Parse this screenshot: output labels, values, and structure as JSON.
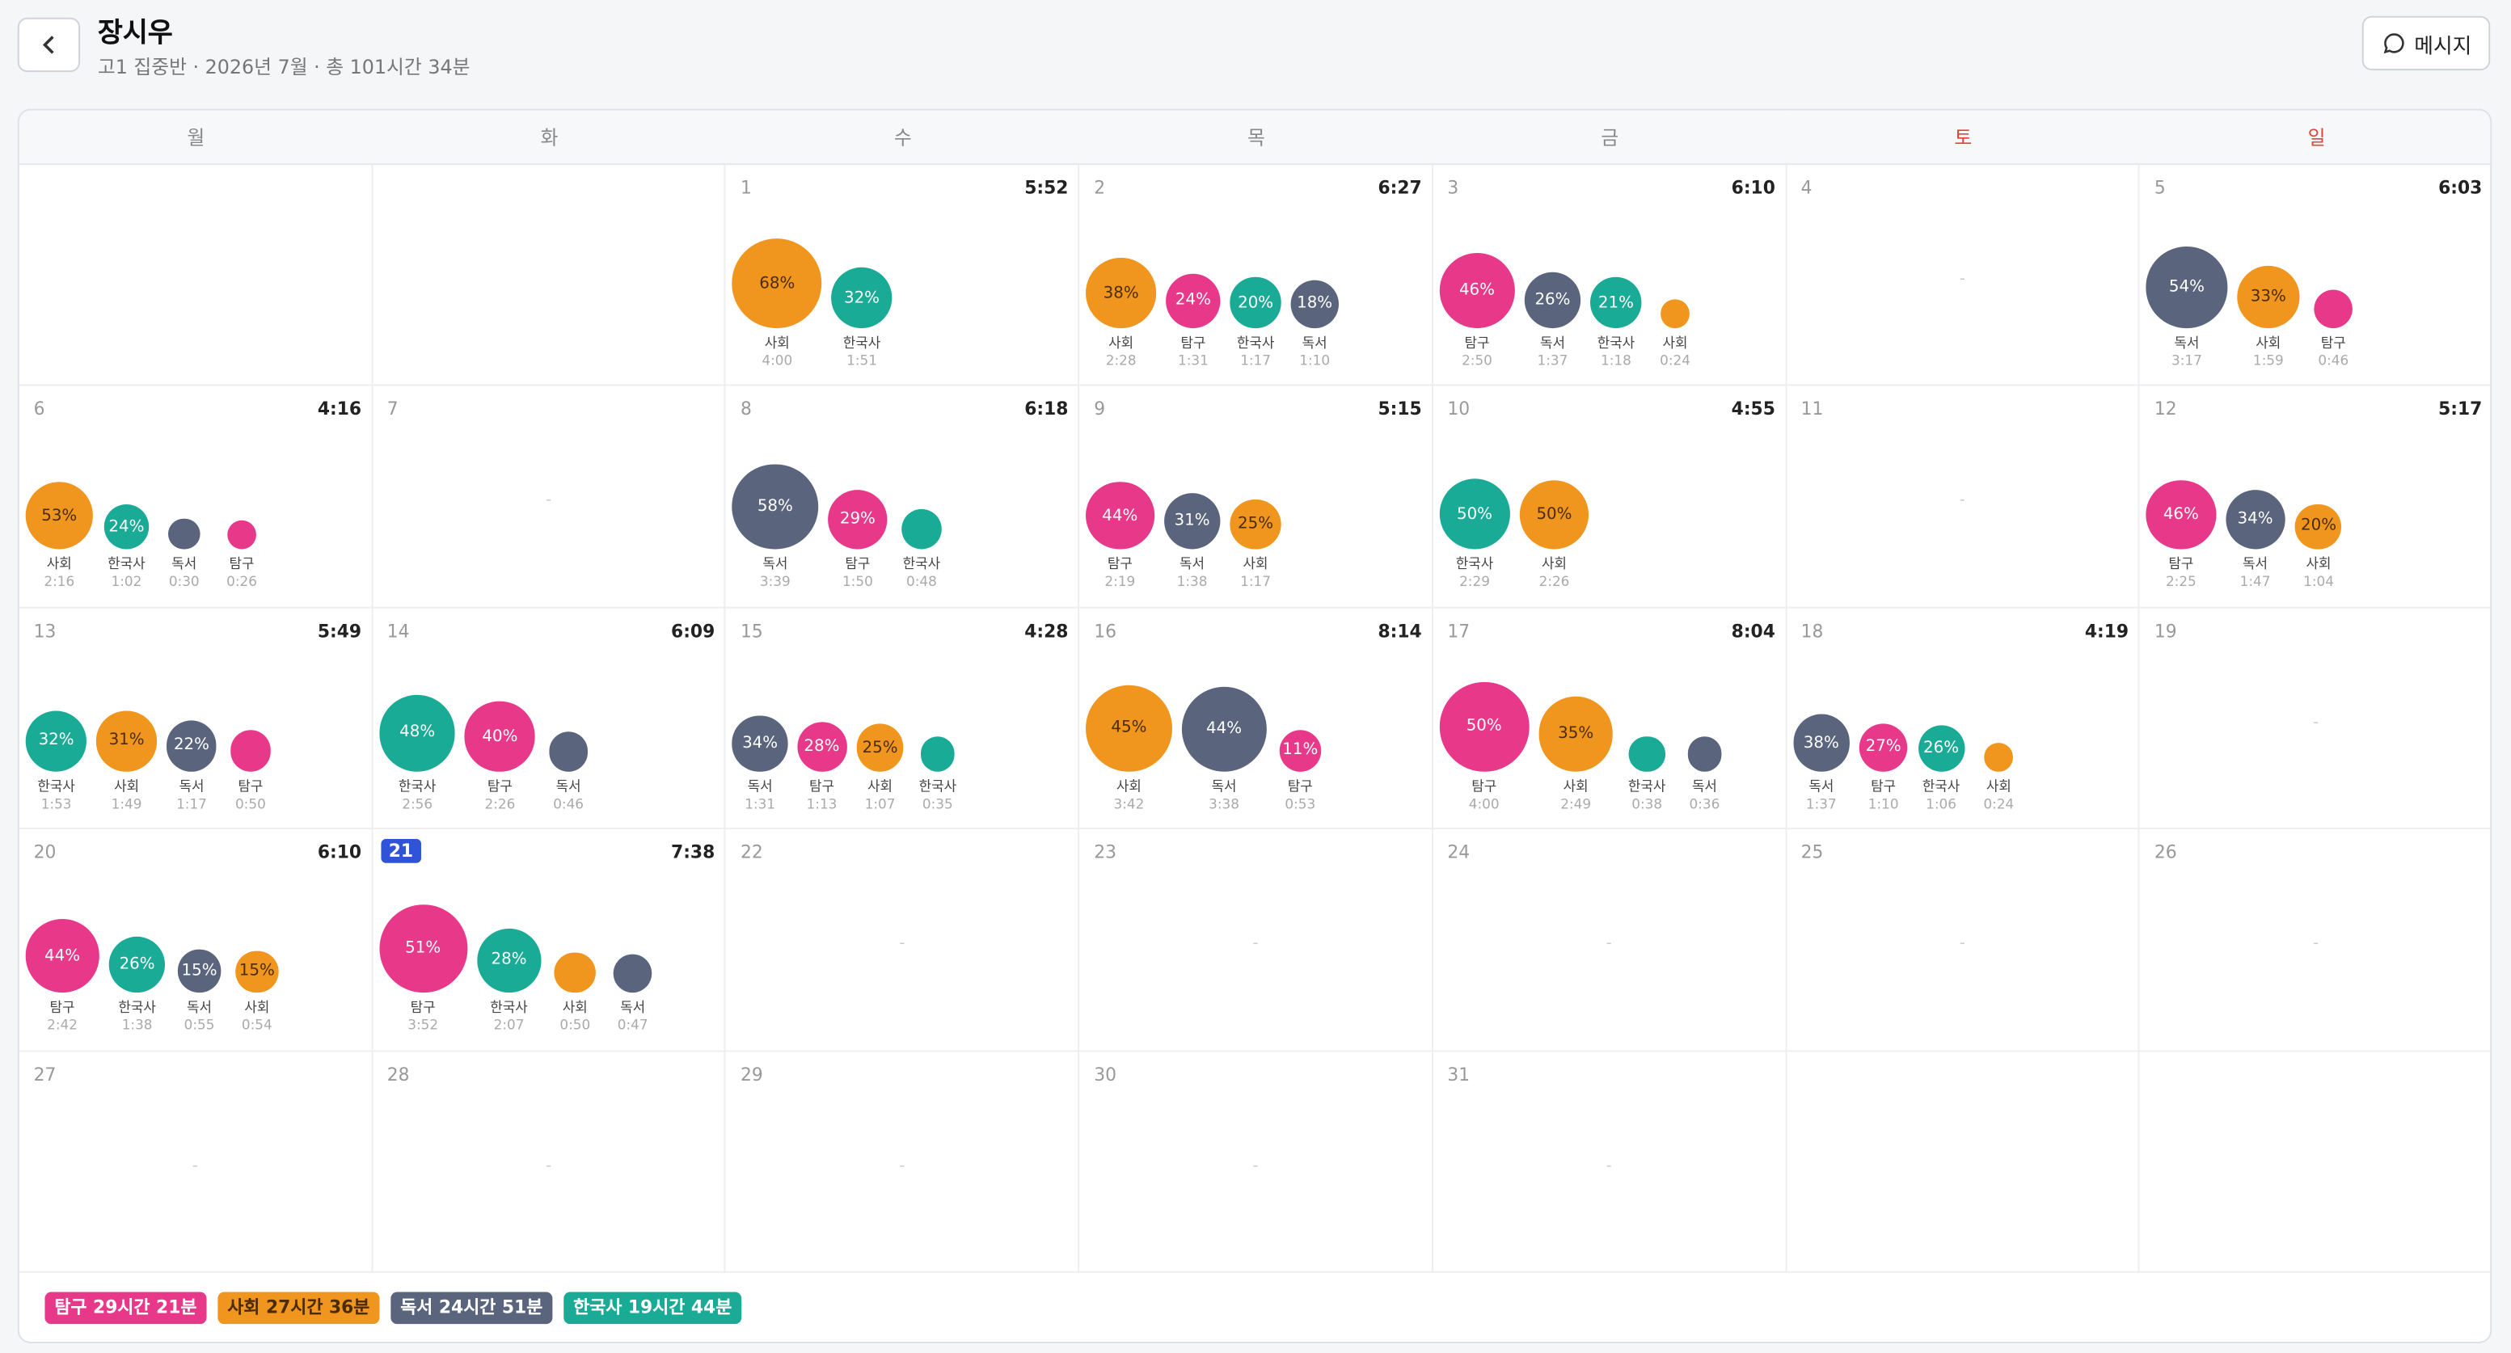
{
  "header": {
    "name": "장시우",
    "subtitle": "고1 집중반 · 2026년 7월 · 총 101시간 34분",
    "message_button": "메시지"
  },
  "weekdays": [
    "월",
    "화",
    "수",
    "목",
    "금",
    "토",
    "일"
  ],
  "empty_mark": "-",
  "subject_colors": {
    "탐구": {
      "fill": "#e8388a",
      "text": "#ffffff"
    },
    "사회": {
      "fill": "#f0961e",
      "text": "#4a2c00"
    },
    "독서": {
      "fill": "#5a657d",
      "text": "#ffffff"
    },
    "한국사": {
      "fill": "#1aab96",
      "text": "#ffffff"
    }
  },
  "weeks": [
    [
      null,
      null,
      {
        "day": 1,
        "total": "5:52",
        "items": [
          {
            "subject": "사회",
            "pct": "68%",
            "time": "4:00"
          },
          {
            "subject": "한국사",
            "pct": "32%",
            "time": "1:51"
          }
        ]
      },
      {
        "day": 2,
        "total": "6:27",
        "items": [
          {
            "subject": "사회",
            "pct": "38%",
            "time": "2:28"
          },
          {
            "subject": "탐구",
            "pct": "24%",
            "time": "1:31"
          },
          {
            "subject": "한국사",
            "pct": "20%",
            "time": "1:17"
          },
          {
            "subject": "독서",
            "pct": "18%",
            "time": "1:10"
          }
        ]
      },
      {
        "day": 3,
        "total": "6:10",
        "items": [
          {
            "subject": "탐구",
            "pct": "46%",
            "time": "2:50"
          },
          {
            "subject": "독서",
            "pct": "26%",
            "time": "1:37"
          },
          {
            "subject": "한국사",
            "pct": "21%",
            "time": "1:18"
          },
          {
            "subject": "사회",
            "time": "0:24"
          }
        ]
      },
      {
        "day": 4
      },
      {
        "day": 5,
        "total": "6:03",
        "items": [
          {
            "subject": "독서",
            "pct": "54%",
            "time": "3:17"
          },
          {
            "subject": "사회",
            "pct": "33%",
            "time": "1:59"
          },
          {
            "subject": "탐구",
            "time": "0:46"
          }
        ]
      }
    ],
    [
      {
        "day": 6,
        "total": "4:16",
        "items": [
          {
            "subject": "사회",
            "pct": "53%",
            "time": "2:16"
          },
          {
            "subject": "한국사",
            "pct": "24%",
            "time": "1:02"
          },
          {
            "subject": "독서",
            "time": "0:30"
          },
          {
            "subject": "탐구",
            "time": "0:26"
          }
        ]
      },
      {
        "day": 7
      },
      {
        "day": 8,
        "total": "6:18",
        "items": [
          {
            "subject": "독서",
            "pct": "58%",
            "time": "3:39"
          },
          {
            "subject": "탐구",
            "pct": "29%",
            "time": "1:50"
          },
          {
            "subject": "한국사",
            "time": "0:48"
          }
        ]
      },
      {
        "day": 9,
        "total": "5:15",
        "items": [
          {
            "subject": "탐구",
            "pct": "44%",
            "time": "2:19"
          },
          {
            "subject": "독서",
            "pct": "31%",
            "time": "1:38"
          },
          {
            "subject": "사회",
            "pct": "25%",
            "time": "1:17"
          }
        ]
      },
      {
        "day": 10,
        "total": "4:55",
        "items": [
          {
            "subject": "한국사",
            "pct": "50%",
            "time": "2:29"
          },
          {
            "subject": "사회",
            "pct": "50%",
            "time": "2:26"
          }
        ]
      },
      {
        "day": 11
      },
      {
        "day": 12,
        "total": "5:17",
        "items": [
          {
            "subject": "탐구",
            "pct": "46%",
            "time": "2:25"
          },
          {
            "subject": "독서",
            "pct": "34%",
            "time": "1:47"
          },
          {
            "subject": "사회",
            "pct": "20%",
            "time": "1:04"
          }
        ]
      }
    ],
    [
      {
        "day": 13,
        "total": "5:49",
        "items": [
          {
            "subject": "한국사",
            "pct": "32%",
            "time": "1:53"
          },
          {
            "subject": "사회",
            "pct": "31%",
            "time": "1:49"
          },
          {
            "subject": "독서",
            "pct": "22%",
            "time": "1:17"
          },
          {
            "subject": "탐구",
            "time": "0:50"
          }
        ]
      },
      {
        "day": 14,
        "total": "6:09",
        "items": [
          {
            "subject": "한국사",
            "pct": "48%",
            "time": "2:56"
          },
          {
            "subject": "탐구",
            "pct": "40%",
            "time": "2:26"
          },
          {
            "subject": "독서",
            "time": "0:46"
          }
        ]
      },
      {
        "day": 15,
        "total": "4:28",
        "items": [
          {
            "subject": "독서",
            "pct": "34%",
            "time": "1:31"
          },
          {
            "subject": "탐구",
            "pct": "28%",
            "time": "1:13"
          },
          {
            "subject": "사회",
            "pct": "25%",
            "time": "1:07"
          },
          {
            "subject": "한국사",
            "time": "0:35"
          }
        ]
      },
      {
        "day": 16,
        "total": "8:14",
        "items": [
          {
            "subject": "사회",
            "pct": "45%",
            "time": "3:42"
          },
          {
            "subject": "독서",
            "pct": "44%",
            "time": "3:38"
          },
          {
            "subject": "탐구",
            "pct": "11%",
            "time": "0:53"
          }
        ]
      },
      {
        "day": 17,
        "total": "8:04",
        "items": [
          {
            "subject": "탐구",
            "pct": "50%",
            "time": "4:00"
          },
          {
            "subject": "사회",
            "pct": "35%",
            "time": "2:49"
          },
          {
            "subject": "한국사",
            "time": "0:38"
          },
          {
            "subject": "독서",
            "time": "0:36"
          }
        ]
      },
      {
        "day": 18,
        "total": "4:19",
        "items": [
          {
            "subject": "독서",
            "pct": "38%",
            "time": "1:37"
          },
          {
            "subject": "탐구",
            "pct": "27%",
            "time": "1:10"
          },
          {
            "subject": "한국사",
            "pct": "26%",
            "time": "1:06"
          },
          {
            "subject": "사회",
            "time": "0:24"
          }
        ]
      },
      {
        "day": 19
      }
    ],
    [
      {
        "day": 20,
        "total": "6:10",
        "items": [
          {
            "subject": "탐구",
            "pct": "44%",
            "time": "2:42"
          },
          {
            "subject": "한국사",
            "pct": "26%",
            "time": "1:38"
          },
          {
            "subject": "독서",
            "pct": "15%",
            "time": "0:55"
          },
          {
            "subject": "사회",
            "pct": "15%",
            "time": "0:54"
          }
        ]
      },
      {
        "day": 21,
        "today": true,
        "total": "7:38",
        "items": [
          {
            "subject": "탐구",
            "pct": "51%",
            "time": "3:52"
          },
          {
            "subject": "한국사",
            "pct": "28%",
            "time": "2:07"
          },
          {
            "subject": "사회",
            "time": "0:50"
          },
          {
            "subject": "독서",
            "time": "0:47"
          }
        ]
      },
      {
        "day": 22
      },
      {
        "day": 23
      },
      {
        "day": 24
      },
      {
        "day": 25
      },
      {
        "day": 26
      }
    ],
    [
      {
        "day": 27
      },
      {
        "day": 28
      },
      {
        "day": 29
      },
      {
        "day": 30
      },
      {
        "day": 31
      },
      null,
      null
    ]
  ],
  "legend": [
    {
      "label": "탐구 29시간 21분",
      "color": "#e8388a",
      "text_color": "#ffffff"
    },
    {
      "label": "사회 27시간 36분",
      "color": "#f0961e",
      "text_color": "#4a2c00"
    },
    {
      "label": "독서 24시간 51분",
      "color": "#5a657d",
      "text_color": "#ffffff"
    },
    {
      "label": "한국사 19시간 44분",
      "color": "#1aab96",
      "text_color": "#ffffff"
    }
  ]
}
